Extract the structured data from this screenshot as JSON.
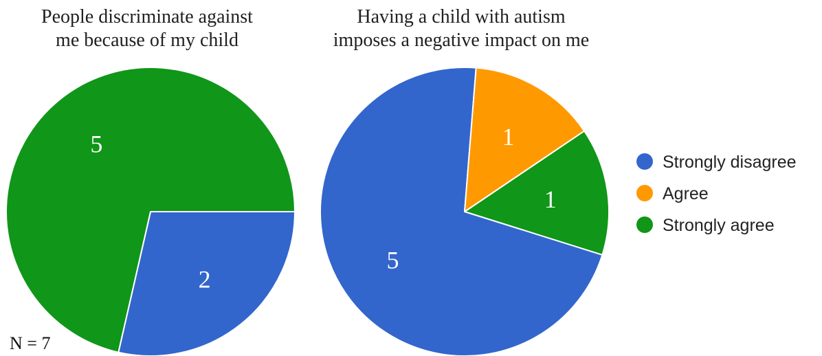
{
  "chart_data": [
    {
      "type": "pie",
      "title_lines": [
        "People discriminate against",
        "me because of my child"
      ],
      "slices": [
        {
          "label": "Strongly disagree",
          "value": 2,
          "display": "2",
          "color": "#3366cc"
        },
        {
          "label": "Strongly agree",
          "value": 5,
          "display": "5",
          "color": "#109618"
        }
      ]
    },
    {
      "type": "pie",
      "title_lines": [
        "Having a child with autism",
        "imposes a negative impact on me"
      ],
      "slices": [
        {
          "label": "Strongly agree",
          "value": 1,
          "display": "1",
          "color": "#109618"
        },
        {
          "label": "Strongly disagree",
          "value": 5,
          "display": "5",
          "color": "#3366cc"
        },
        {
          "label": "Agree",
          "value": 1,
          "display": "1",
          "color": "#ff9900"
        }
      ]
    }
  ],
  "legend": [
    {
      "label": "Strongly disagree",
      "color": "#3366cc"
    },
    {
      "label": "Agree",
      "color": "#ff9900"
    },
    {
      "label": "Strongly agree",
      "color": "#109618"
    }
  ],
  "note": "N = 7"
}
